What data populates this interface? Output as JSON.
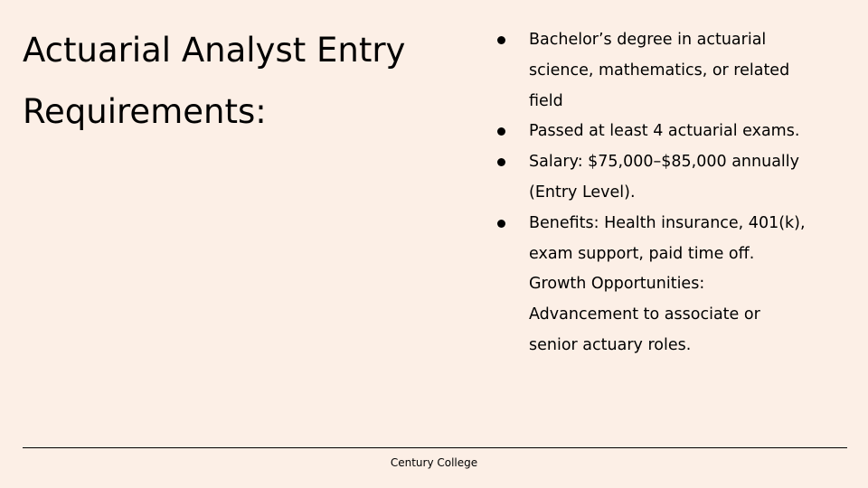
{
  "slide": {
    "title_line1": "Actuarial Analyst Entry",
    "title_line2": "Requirements:",
    "bullets": [
      "Bachelor’s degree in actuarial science, mathematics, or related field",
      "Passed at least 4 actuarial exams.",
      "Salary: $75,000–$85,000 annually (Entry Level).",
      "Benefits: Health insurance, 401(k), exam support, paid time off. Growth Opportunities: Advancement to associate or senior actuary roles."
    ],
    "footer": "Century College"
  }
}
